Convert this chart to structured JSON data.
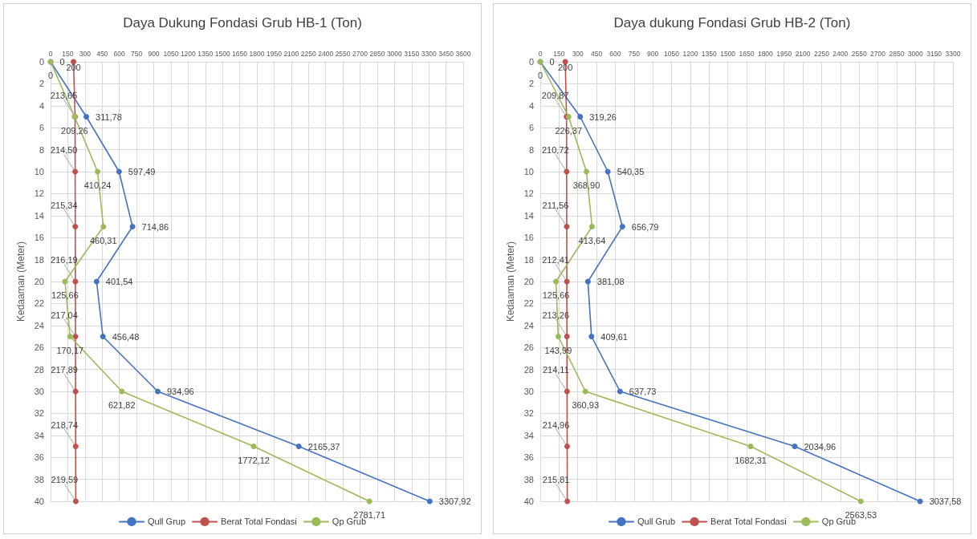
{
  "chart_data": [
    {
      "type": "line",
      "orientation": "horizontal",
      "title": "Daya Dukung Fondasi Grub HB-1 (Ton)",
      "ylabel": "Kedaaman (Meter)",
      "xlim": [
        0,
        3600
      ],
      "xticks": [
        0,
        150,
        300,
        450,
        600,
        750,
        900,
        1050,
        1200,
        1350,
        1500,
        1650,
        1800,
        1950,
        2100,
        2250,
        2400,
        2550,
        2700,
        2850,
        3000,
        3150,
        3300,
        3450,
        3600
      ],
      "ylim": [
        40,
        0
      ],
      "yticks": [
        0,
        2,
        4,
        6,
        8,
        10,
        12,
        14,
        16,
        18,
        20,
        22,
        24,
        26,
        28,
        30,
        32,
        34,
        36,
        38,
        40
      ],
      "grid": true,
      "legend": "bottom",
      "marker": "circle",
      "line_style": "solid",
      "series": [
        {
          "name": "Qull Grup",
          "color": "#4472c4",
          "x": [
            0,
            5,
            10,
            15,
            20,
            25,
            30,
            35,
            40
          ],
          "values": [
            0,
            311.78,
            597.49,
            714.86,
            401.54,
            456.48,
            934.96,
            2165.37,
            3307.92
          ],
          "value_labels": [
            "0",
            "311,78",
            "597,49",
            "714,86",
            "401,54",
            "456,48",
            "934,96",
            "2165,37",
            "3307,92"
          ]
        },
        {
          "name": "Berat Total Fondasi",
          "color": "#c0504d",
          "x": [
            0,
            5,
            10,
            15,
            20,
            25,
            30,
            35,
            40
          ],
          "values": [
            200,
            213.65,
            214.5,
            215.34,
            216.19,
            217.04,
            217.89,
            218.74,
            219.59
          ],
          "value_labels": [
            "200",
            "213,65",
            "214,50",
            "215,34",
            "216,19",
            "217,04",
            "217,89",
            "218,74",
            "219,59"
          ]
        },
        {
          "name": "Qp Grub",
          "color": "#9bbb59",
          "x": [
            0,
            5,
            10,
            15,
            20,
            25,
            30,
            35,
            40
          ],
          "values": [
            0,
            209.26,
            410.24,
            460.31,
            125.66,
            170.17,
            621.82,
            1772.12,
            2781.71
          ],
          "value_labels": [
            "0",
            "209,26",
            "410,24",
            "460,31",
            "125,66",
            "170,17",
            "621,82",
            "1772,12",
            "2781,71"
          ]
        }
      ]
    },
    {
      "type": "line",
      "orientation": "horizontal",
      "title": "Daya dukung Fondasi Grub HB-2 (Ton)",
      "ylabel": "Kedaaman (Meter)",
      "xlim": [
        0,
        3300
      ],
      "xticks": [
        0,
        150,
        300,
        450,
        600,
        750,
        900,
        1050,
        1200,
        1350,
        1500,
        1650,
        1800,
        1950,
        2100,
        2250,
        2400,
        2550,
        2700,
        2850,
        3000,
        3150,
        3300
      ],
      "ylim": [
        40,
        0
      ],
      "yticks": [
        0,
        2,
        4,
        6,
        8,
        10,
        12,
        14,
        16,
        18,
        20,
        22,
        24,
        26,
        28,
        30,
        32,
        34,
        36,
        38,
        40
      ],
      "grid": true,
      "legend": "bottom",
      "marker": "circle",
      "line_style": "solid",
      "series": [
        {
          "name": "Qull Grub",
          "color": "#4472c4",
          "x": [
            0,
            5,
            10,
            15,
            20,
            25,
            30,
            35,
            40
          ],
          "values": [
            0,
            319.26,
            540.35,
            656.79,
            381.08,
            409.61,
            637.73,
            2034.96,
            3037.58
          ],
          "value_labels": [
            "0",
            "319,26",
            "540,35",
            "656,79",
            "381,08",
            "409,61",
            "637,73",
            "2034,96",
            "3037,58"
          ]
        },
        {
          "name": "Berat Total Fondasi",
          "color": "#c0504d",
          "x": [
            0,
            5,
            10,
            15,
            20,
            25,
            30,
            35,
            40
          ],
          "values": [
            200,
            209.87,
            210.72,
            211.56,
            212.41,
            213.26,
            214.11,
            214.96,
            215.81
          ],
          "value_labels": [
            "200",
            "209,87",
            "210,72",
            "211,56",
            "212,41",
            "213,26",
            "214,11",
            "214,96",
            "215,81"
          ]
        },
        {
          "name": "Qp Grub",
          "color": "#9bbb59",
          "x": [
            0,
            5,
            10,
            15,
            20,
            25,
            30,
            35,
            40
          ],
          "values": [
            0,
            226.37,
            368.9,
            413.64,
            125.66,
            143.99,
            360.93,
            1682.31,
            2563.53
          ],
          "value_labels": [
            "0",
            "226,37",
            "368,90",
            "413,64",
            "125,66",
            "143,99",
            "360,93",
            "1682,31",
            "2563,53"
          ]
        }
      ]
    }
  ]
}
